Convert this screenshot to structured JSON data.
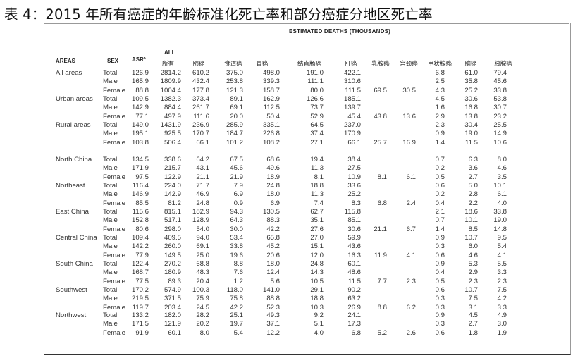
{
  "title": "表 4：2015 年所有癌症的年龄标准化死亡率和部分癌症分地区死亡率",
  "estimated_header": "ESTIMATED DEATHS (THOUSANDS)",
  "headers": {
    "areas": "AREAS",
    "sex": "SEX",
    "asr": "ASR*",
    "all_top": "ALL",
    "all_bottom": "所有",
    "cancers": [
      "肺癌",
      "食道癌",
      "胃癌",
      "结直肠癌",
      "肝癌",
      "乳腺癌",
      "宫颈癌",
      "甲状腺癌",
      "脑癌",
      "胰腺癌"
    ]
  },
  "groups": [
    {
      "area": "All areas",
      "rows": [
        {
          "sex": "Total",
          "v": [
            "126.9",
            "2814.2",
            "610.2",
            "375.0",
            "498.0",
            "191.0",
            "422.1",
            "",
            "",
            "6.8",
            "61.0",
            "79.4"
          ]
        },
        {
          "sex": "Male",
          "v": [
            "165.9",
            "1809.9",
            "432.4",
            "253.8",
            "339.3",
            "111.1",
            "310.6",
            "",
            "",
            "2.5",
            "35.8",
            "45.6"
          ]
        },
        {
          "sex": "Female",
          "v": [
            "88.8",
            "1004.4",
            "177.8",
            "121.3",
            "158.7",
            "80.0",
            "111.5",
            "69.5",
            "30.5",
            "4.3",
            "25.2",
            "33.8"
          ]
        }
      ]
    },
    {
      "area": "Urban areas",
      "rows": [
        {
          "sex": "Total",
          "v": [
            "109.5",
            "1382.3",
            "373.4",
            "89.1",
            "162.9",
            "126.6",
            "185.1",
            "",
            "",
            "4.5",
            "30.6",
            "53.8"
          ]
        },
        {
          "sex": "Male",
          "v": [
            "142.9",
            "884.4",
            "261.7",
            "69.1",
            "112.5",
            "73.7",
            "139.7",
            "",
            "",
            "1.6",
            "16.8",
            "30.7"
          ]
        },
        {
          "sex": "Female",
          "v": [
            "77.1",
            "497.9",
            "111.6",
            "20.0",
            "50.4",
            "52.9",
            "45.4",
            "43.8",
            "13.6",
            "2.9",
            "13.8",
            "23.2"
          ]
        }
      ]
    },
    {
      "area": "Rural areas",
      "rows": [
        {
          "sex": "Total",
          "v": [
            "149.0",
            "1431.9",
            "236.9",
            "285.9",
            "335.1",
            "64.5",
            "237.0",
            "",
            "",
            "2.3",
            "30.4",
            "25.5"
          ]
        },
        {
          "sex": "Male",
          "v": [
            "195.1",
            "925.5",
            "170.7",
            "184.7",
            "226.8",
            "37.4",
            "170.9",
            "",
            "",
            "0.9",
            "19.0",
            "14.9"
          ]
        },
        {
          "sex": "Female",
          "v": [
            "103.8",
            "506.4",
            "66.1",
            "101.2",
            "108.2",
            "27.1",
            "66.1",
            "25.7",
            "16.9",
            "1.4",
            "11.5",
            "10.6"
          ]
        }
      ]
    },
    {
      "area": "North China",
      "rows": [
        {
          "sex": "Total",
          "v": [
            "134.5",
            "338.6",
            "64.2",
            "67.5",
            "68.6",
            "19.4",
            "38.4",
            "",
            "",
            "0.7",
            "6.3",
            "8.0"
          ]
        },
        {
          "sex": "Male",
          "v": [
            "171.9",
            "215.7",
            "43.1",
            "45.6",
            "49.6",
            "11.3",
            "27.5",
            "",
            "",
            "0.2",
            "3.6",
            "4.6"
          ]
        },
        {
          "sex": "Female",
          "v": [
            "97.5",
            "122.9",
            "21.1",
            "21.9",
            "18.9",
            "8.1",
            "10.9",
            "8.1",
            "6.1",
            "0.5",
            "2.7",
            "3.5"
          ]
        }
      ]
    },
    {
      "area": "Northeast",
      "rows": [
        {
          "sex": "Total",
          "v": [
            "116.4",
            "224.0",
            "71.7",
            "7.9",
            "24.8",
            "18.8",
            "33.6",
            "",
            "",
            "0.6",
            "5.0",
            "10.1"
          ]
        },
        {
          "sex": "Male",
          "v": [
            "146.9",
            "142.9",
            "46.9",
            "6.9",
            "18.0",
            "11.3",
            "25.2",
            "",
            "",
            "0.2",
            "2.8",
            "6.1"
          ]
        },
        {
          "sex": "Female",
          "v": [
            "85.5",
            "81.2",
            "24.8",
            "0.9",
            "6.9",
            "7.4",
            "8.3",
            "6.8",
            "2.4",
            "0.4",
            "2.2",
            "4.0"
          ]
        }
      ]
    },
    {
      "area": "East China",
      "rows": [
        {
          "sex": "Total",
          "v": [
            "115.6",
            "815.1",
            "182.9",
            "94.3",
            "130.5",
            "62.7",
            "115.8",
            "",
            "",
            "2.1",
            "18.6",
            "33.8"
          ]
        },
        {
          "sex": "Male",
          "v": [
            "152.8",
            "517.1",
            "128.9",
            "64.3",
            "88.3",
            "35.1",
            "85.1",
            "",
            "",
            "0.7",
            "10.1",
            "19.0"
          ]
        },
        {
          "sex": "Female",
          "v": [
            "80.6",
            "298.0",
            "54.0",
            "30.0",
            "42.2",
            "27.6",
            "30.6",
            "21.1",
            "6.7",
            "1.4",
            "8.5",
            "14.8"
          ]
        }
      ]
    },
    {
      "area": "Central China",
      "rows": [
        {
          "sex": "Total",
          "v": [
            "109.4",
            "409.5",
            "94.0",
            "53.4",
            "65.8",
            "27.0",
            "59.9",
            "",
            "",
            "0.9",
            "10.7",
            "9.5"
          ]
        },
        {
          "sex": "Male",
          "v": [
            "142.2",
            "260.0",
            "69.1",
            "33.8",
            "45.2",
            "15.1",
            "43.6",
            "",
            "",
            "0.3",
            "6.0",
            "5.4"
          ]
        },
        {
          "sex": "Female",
          "v": [
            "77.9",
            "149.5",
            "25.0",
            "19.6",
            "20.6",
            "12.0",
            "16.3",
            "11.9",
            "4.1",
            "0.6",
            "4.6",
            "4.1"
          ]
        }
      ]
    },
    {
      "area": "South China",
      "rows": [
        {
          "sex": "Total",
          "v": [
            "122.4",
            "270.2",
            "68.8",
            "8.8",
            "18.0",
            "24.8",
            "60.1",
            "",
            "",
            "0.9",
            "5.3",
            "5.5"
          ]
        },
        {
          "sex": "Male",
          "v": [
            "168.7",
            "180.9",
            "48.3",
            "7.6",
            "12.4",
            "14.3",
            "48.6",
            "",
            "",
            "0.4",
            "2.9",
            "3.3"
          ]
        },
        {
          "sex": "Female",
          "v": [
            "77.5",
            "89.3",
            "20.4",
            "1.2",
            "5.6",
            "10.5",
            "11.5",
            "7.7",
            "2.3",
            "0.5",
            "2.3",
            "2.3"
          ]
        }
      ]
    },
    {
      "area": "Southwest",
      "rows": [
        {
          "sex": "Total",
          "v": [
            "170.2",
            "574.9",
            "100.3",
            "118.0",
            "141.0",
            "29.1",
            "90.2",
            "",
            "",
            "0.6",
            "10.7",
            "7.5"
          ]
        },
        {
          "sex": "Male",
          "v": [
            "219.5",
            "371.5",
            "75.9",
            "75.8",
            "88.8",
            "18.8",
            "63.2",
            "",
            "",
            "0.3",
            "7.5",
            "4.2"
          ]
        },
        {
          "sex": "Female",
          "v": [
            "119.7",
            "203.4",
            "24.5",
            "42.2",
            "52.3",
            "10.3",
            "26.9",
            "8.8",
            "6.2",
            "0.3",
            "3.1",
            "3.3"
          ]
        }
      ]
    },
    {
      "area": "Northwest",
      "rows": [
        {
          "sex": "Total",
          "v": [
            "133.2",
            "182.0",
            "28.2",
            "25.1",
            "49.3",
            "9.2",
            "24.1",
            "",
            "",
            "0.9",
            "4.5",
            "4.9"
          ]
        },
        {
          "sex": "Male",
          "v": [
            "171.5",
            "121.9",
            "20.2",
            "19.7",
            "37.1",
            "5.1",
            "17.3",
            "",
            "",
            "0.3",
            "2.7",
            "3.0"
          ]
        },
        {
          "sex": "Female",
          "v": [
            "91.9",
            "60.1",
            "8.0",
            "5.4",
            "12.2",
            "4.0",
            "6.8",
            "5.2",
            "2.6",
            "0.6",
            "1.8",
            "1.9"
          ]
        }
      ]
    }
  ]
}
